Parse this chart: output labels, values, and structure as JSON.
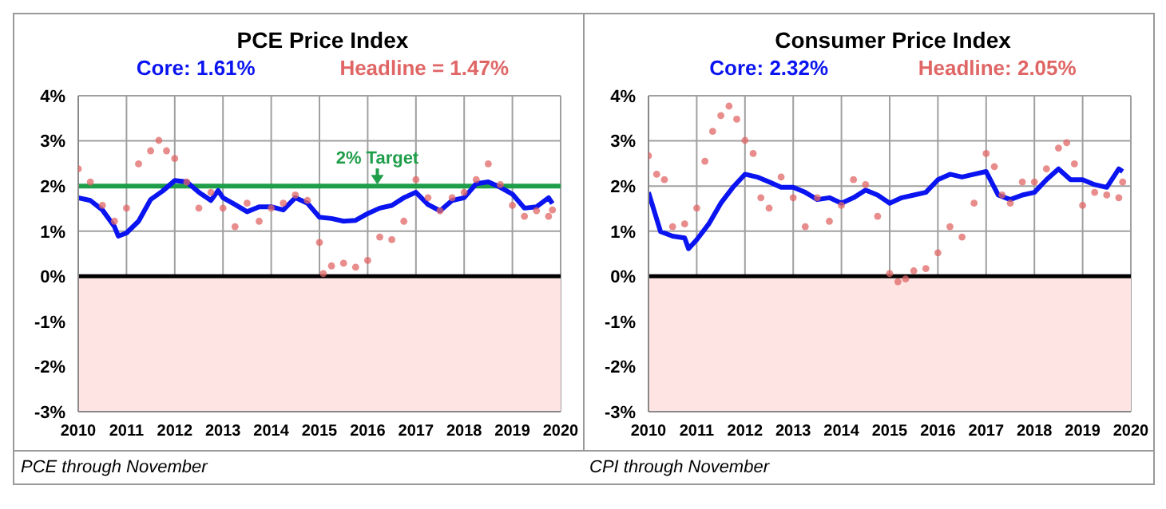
{
  "chart_data": [
    {
      "type": "line",
      "title": "PCE Price Index",
      "legend": "top",
      "grid": true,
      "xlim": [
        2010,
        2020
      ],
      "xticks": [
        2010,
        2011,
        2012,
        2013,
        2014,
        2015,
        2016,
        2017,
        2018,
        2019,
        2020
      ],
      "ylim": [
        -3,
        4
      ],
      "yticks": [
        {
          "value": -3,
          "label": "-3%"
        },
        {
          "value": -2,
          "label": "-2%"
        },
        {
          "value": -1,
          "label": "-1%"
        },
        {
          "value": 0,
          "label": "0%"
        },
        {
          "value": 1,
          "label": "1%"
        },
        {
          "value": 2,
          "label": "2%"
        },
        {
          "value": 3,
          "label": "3%"
        },
        {
          "value": 4,
          "label": "4%"
        }
      ],
      "ref_lines": [
        {
          "axis": "y",
          "value": 2,
          "label": "2% Target",
          "color": "#1f9e4a"
        },
        {
          "axis": "y",
          "value": 0,
          "label": null,
          "color": "#000000"
        }
      ],
      "bands": [
        {
          "axis": "y",
          "from": -3,
          "to": 0,
          "color": "#ffe4e4"
        }
      ],
      "annotations": [
        "PCE through November"
      ],
      "series": [
        {
          "name": "Core: 1.61%",
          "marker": "none",
          "line_style": "solid",
          "color": "#0a14f0",
          "x": [
            2010,
            2010.25,
            2010.5,
            2010.75,
            2010.83,
            2011,
            2011.25,
            2011.5,
            2011.75,
            2012,
            2012.25,
            2012.5,
            2012.75,
            2012.9,
            2013,
            2013.25,
            2013.5,
            2013.75,
            2014,
            2014.25,
            2014.5,
            2014.75,
            2015,
            2015.25,
            2015.5,
            2015.75,
            2016,
            2016.25,
            2016.5,
            2016.75,
            2017,
            2017.25,
            2017.5,
            2017.75,
            2018,
            2018.25,
            2018.5,
            2018.75,
            2019,
            2019.25,
            2019.5,
            2019.75,
            2019.83
          ],
          "values": [
            1.74,
            1.68,
            1.47,
            1.1,
            0.89,
            0.96,
            1.22,
            1.7,
            1.89,
            2.12,
            2.09,
            1.86,
            1.68,
            1.9,
            1.74,
            1.59,
            1.43,
            1.54,
            1.54,
            1.47,
            1.74,
            1.62,
            1.31,
            1.28,
            1.22,
            1.24,
            1.39,
            1.51,
            1.57,
            1.74,
            1.86,
            1.59,
            1.45,
            1.68,
            1.74,
            2.05,
            2.09,
            1.97,
            1.82,
            1.51,
            1.54,
            1.74,
            1.61
          ]
        },
        {
          "name": "Headline = 1.47%",
          "type": "scatter",
          "marker": "circle",
          "color": "#e06666",
          "x": [
            2010,
            2010.25,
            2010.5,
            2010.75,
            2011,
            2011.25,
            2011.5,
            2011.67,
            2011.83,
            2012,
            2012.25,
            2012.5,
            2012.75,
            2013,
            2013.25,
            2013.5,
            2013.75,
            2014,
            2014.25,
            2014.5,
            2014.75,
            2015,
            2015.08,
            2015.25,
            2015.5,
            2015.75,
            2016,
            2016.25,
            2016.5,
            2016.75,
            2017,
            2017.25,
            2017.5,
            2017.75,
            2018,
            2018.25,
            2018.5,
            2018.75,
            2019,
            2019.25,
            2019.5,
            2019.75,
            2019.83
          ],
          "values": [
            2.38,
            2.09,
            1.57,
            1.22,
            1.51,
            2.49,
            2.78,
            3.01,
            2.78,
            2.61,
            2.09,
            1.51,
            1.86,
            1.51,
            1.1,
            1.62,
            1.22,
            1.51,
            1.62,
            1.8,
            1.68,
            0.75,
            0.06,
            0.23,
            0.29,
            0.2,
            0.35,
            0.87,
            0.81,
            1.22,
            2.14,
            1.74,
            1.45,
            1.74,
            1.86,
            2.14,
            2.49,
            2.03,
            1.57,
            1.33,
            1.45,
            1.33,
            1.47
          ]
        }
      ]
    },
    {
      "type": "line",
      "title": "Consumer Price Index",
      "legend": "top",
      "grid": true,
      "xlim": [
        2010,
        2020
      ],
      "xticks": [
        2010,
        2011,
        2012,
        2013,
        2014,
        2015,
        2016,
        2017,
        2018,
        2019,
        2020
      ],
      "ylim": [
        -3,
        4
      ],
      "yticks": [
        {
          "value": -3,
          "label": "-3%"
        },
        {
          "value": -2,
          "label": "-2%"
        },
        {
          "value": -1,
          "label": "-1%"
        },
        {
          "value": 0,
          "label": "0%"
        },
        {
          "value": 1,
          "label": "1%"
        },
        {
          "value": 2,
          "label": "2%"
        },
        {
          "value": 3,
          "label": "3%"
        },
        {
          "value": 4,
          "label": "4%"
        }
      ],
      "ref_lines": [
        {
          "axis": "y",
          "value": 0,
          "label": null,
          "color": "#000000"
        }
      ],
      "bands": [
        {
          "axis": "y",
          "from": -3,
          "to": 0,
          "color": "#ffe4e4"
        }
      ],
      "annotations": [
        "CPI through November"
      ],
      "series": [
        {
          "name": "Core: 2.32%",
          "marker": "none",
          "line_style": "solid",
          "color": "#0a14f0",
          "x": [
            2010,
            2010.25,
            2010.5,
            2010.75,
            2010.83,
            2011,
            2011.25,
            2011.5,
            2011.75,
            2012,
            2012.25,
            2012.5,
            2012.75,
            2013,
            2013.25,
            2013.5,
            2013.75,
            2014,
            2014.25,
            2014.5,
            2014.75,
            2015,
            2015.25,
            2015.5,
            2015.75,
            2016,
            2016.25,
            2016.5,
            2016.75,
            2017,
            2017.25,
            2017.5,
            2017.75,
            2018,
            2018.25,
            2018.5,
            2018.75,
            2019,
            2019.25,
            2019.5,
            2019.75,
            2019.83
          ],
          "values": [
            1.86,
            0.99,
            0.89,
            0.85,
            0.61,
            0.81,
            1.16,
            1.62,
            1.97,
            2.26,
            2.2,
            2.09,
            1.97,
            1.97,
            1.86,
            1.7,
            1.74,
            1.62,
            1.74,
            1.91,
            1.8,
            1.62,
            1.74,
            1.8,
            1.86,
            2.14,
            2.26,
            2.2,
            2.26,
            2.32,
            1.8,
            1.7,
            1.8,
            1.86,
            2.14,
            2.38,
            2.14,
            2.14,
            2.03,
            1.97,
            2.38,
            2.32
          ]
        },
        {
          "name": "Headline: 2.05%",
          "type": "scatter",
          "marker": "circle",
          "color": "#e06666",
          "x": [
            2010,
            2010.17,
            2010.33,
            2010.5,
            2010.75,
            2011,
            2011.17,
            2011.33,
            2011.5,
            2011.67,
            2011.83,
            2012,
            2012.17,
            2012.33,
            2012.5,
            2012.75,
            2013,
            2013.25,
            2013.5,
            2013.75,
            2014,
            2014.25,
            2014.5,
            2014.75,
            2015,
            2015.17,
            2015.33,
            2015.5,
            2015.75,
            2016,
            2016.25,
            2016.5,
            2016.75,
            2017,
            2017.17,
            2017.33,
            2017.5,
            2017.75,
            2018,
            2018.25,
            2018.5,
            2018.67,
            2018.83,
            2019,
            2019.25,
            2019.5,
            2019.75,
            2019.83
          ],
          "values": [
            2.67,
            2.26,
            2.14,
            1.1,
            1.16,
            1.51,
            2.55,
            3.21,
            3.56,
            3.77,
            3.48,
            3.01,
            2.72,
            1.74,
            1.51,
            2.2,
            1.74,
            1.1,
            1.74,
            1.22,
            1.57,
            2.14,
            2.03,
            1.33,
            0.06,
            -0.12,
            -0.06,
            0.12,
            0.17,
            0.52,
            1.1,
            0.87,
            1.62,
            2.72,
            2.43,
            1.8,
            1.62,
            2.09,
            2.09,
            2.38,
            2.84,
            2.96,
            2.49,
            1.57,
            1.86,
            1.8,
            1.74,
            2.09
          ]
        }
      ]
    }
  ]
}
